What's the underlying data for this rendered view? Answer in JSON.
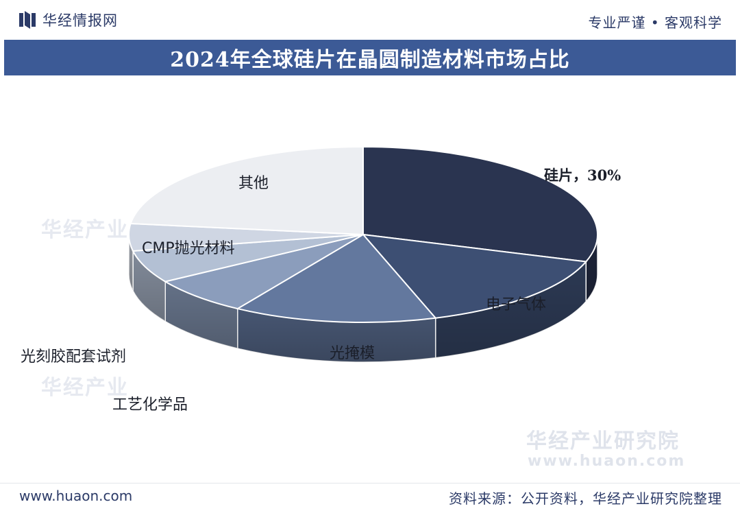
{
  "header": {
    "brand": "华经情报网",
    "slogan": "专业严谨 • 客观科学"
  },
  "title": "2024年全球硅片在晶圆制造材料市场占比",
  "chart_data": {
    "type": "pie",
    "style": "3d",
    "slices": [
      {
        "label": "硅片，30%",
        "value": 30,
        "color": "#2a3450"
      },
      {
        "label": "电子气体",
        "value": 15,
        "color": "#3d4f73"
      },
      {
        "label": "光掩模",
        "value": 14,
        "color": "#63789e"
      },
      {
        "label": "工艺化学品",
        "value": 7,
        "color": "#8b9dbc"
      },
      {
        "label": "光刻胶配套试剂",
        "value": 6,
        "color": "#b3c0d4"
      },
      {
        "label": "CMP抛光材料",
        "value": 5,
        "color": "#cfd6e3"
      },
      {
        "label": "其他",
        "value": 23,
        "color": "#eceef2"
      }
    ]
  },
  "watermark": {
    "cn": "华经产业研究院",
    "url": "www.huaon.com"
  },
  "footer": {
    "url": "www.huaon.com",
    "source": "资料来源：公开资料，华经产业研究院整理"
  }
}
